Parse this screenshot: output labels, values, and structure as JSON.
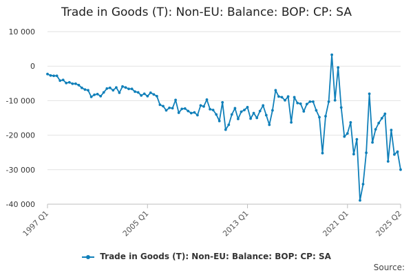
{
  "chart_data": {
    "type": "line",
    "title": "Trade in Goods (T): Non-EU: Balance: BOP: CP: SA",
    "source_label": "Source:",
    "yticks": [
      "10 000",
      "0",
      "-10 000",
      "-20 000",
      "-30 000",
      "-40 000"
    ],
    "ytick_values": [
      10000,
      0,
      -10000,
      -20000,
      -30000,
      -40000
    ],
    "ylim": [
      -40000,
      10000
    ],
    "xlim": [
      "1997 Q1",
      "2025 Q2"
    ],
    "xticks": [
      "1997 Q1",
      "2005 Q1",
      "2013 Q1",
      "2021 Q1",
      "2025 Q2"
    ],
    "grid": true,
    "legend_position": "bottom",
    "color": "#0f7fb9",
    "series": [
      {
        "name": "Trade in Goods (T): Non-EU: Balance: BOP: CP: SA",
        "x": [
          "1997 Q1",
          "1997 Q2",
          "1997 Q3",
          "1997 Q4",
          "1998 Q1",
          "1998 Q2",
          "1998 Q3",
          "1998 Q4",
          "1999 Q1",
          "1999 Q2",
          "1999 Q3",
          "1999 Q4",
          "2000 Q1",
          "2000 Q2",
          "2000 Q3",
          "2000 Q4",
          "2001 Q1",
          "2001 Q2",
          "2001 Q3",
          "2001 Q4",
          "2002 Q1",
          "2002 Q2",
          "2002 Q3",
          "2002 Q4",
          "2003 Q1",
          "2003 Q2",
          "2003 Q3",
          "2003 Q4",
          "2004 Q1",
          "2004 Q2",
          "2004 Q3",
          "2004 Q4",
          "2005 Q1",
          "2005 Q2",
          "2005 Q3",
          "2005 Q4",
          "2006 Q1",
          "2006 Q2",
          "2006 Q3",
          "2006 Q4",
          "2007 Q1",
          "2007 Q2",
          "2007 Q3",
          "2007 Q4",
          "2008 Q1",
          "2008 Q2",
          "2008 Q3",
          "2008 Q4",
          "2009 Q1",
          "2009 Q2",
          "2009 Q3",
          "2009 Q4",
          "2010 Q1",
          "2010 Q2",
          "2010 Q3",
          "2010 Q4",
          "2011 Q1",
          "2011 Q2",
          "2011 Q3",
          "2011 Q4",
          "2012 Q1",
          "2012 Q2",
          "2012 Q3",
          "2012 Q4",
          "2013 Q1",
          "2013 Q2",
          "2013 Q3",
          "2013 Q4",
          "2014 Q1",
          "2014 Q2",
          "2014 Q3",
          "2014 Q4",
          "2015 Q1",
          "2015 Q2",
          "2015 Q3",
          "2015 Q4",
          "2016 Q1",
          "2016 Q2",
          "2016 Q3",
          "2016 Q4",
          "2017 Q1",
          "2017 Q2",
          "2017 Q3",
          "2017 Q4",
          "2018 Q1",
          "2018 Q2",
          "2018 Q3",
          "2018 Q4",
          "2019 Q1",
          "2019 Q2",
          "2019 Q3",
          "2019 Q4",
          "2020 Q1",
          "2020 Q2",
          "2020 Q3",
          "2020 Q4",
          "2021 Q1",
          "2021 Q2",
          "2021 Q3",
          "2021 Q4",
          "2022 Q1",
          "2022 Q2",
          "2022 Q3",
          "2022 Q4",
          "2023 Q1",
          "2023 Q2",
          "2023 Q3",
          "2023 Q4",
          "2024 Q1",
          "2024 Q2",
          "2024 Q3",
          "2024 Q4",
          "2025 Q1",
          "2025 Q2"
        ],
        "values": [
          -2300,
          -2700,
          -2800,
          -2800,
          -4200,
          -4000,
          -4900,
          -4700,
          -5100,
          -5100,
          -5500,
          -6300,
          -6800,
          -7000,
          -8900,
          -8300,
          -8100,
          -8700,
          -7600,
          -6500,
          -6300,
          -7000,
          -6200,
          -7700,
          -5900,
          -6200,
          -6600,
          -6600,
          -7400,
          -7600,
          -8500,
          -8000,
          -8700,
          -7700,
          -8200,
          -8700,
          -11200,
          -11600,
          -12800,
          -12100,
          -12200,
          -9800,
          -13500,
          -12400,
          -12300,
          -13000,
          -13600,
          -13400,
          -14200,
          -11400,
          -11700,
          -9700,
          -12500,
          -12700,
          -14000,
          -15900,
          -10500,
          -18400,
          -17000,
          -14000,
          -12200,
          -15300,
          -13200,
          -12700,
          -11900,
          -15200,
          -13600,
          -15000,
          -13000,
          -11400,
          -14200,
          -17000,
          -12800,
          -7000,
          -8800,
          -9000,
          -9900,
          -8800,
          -16300,
          -9000,
          -10700,
          -10900,
          -13100,
          -11000,
          -10300,
          -10300,
          -12800,
          -14800,
          -25200,
          -14500,
          -10300,
          3300,
          -9900,
          -400,
          -12000,
          -20400,
          -19500,
          -16300,
          -25500,
          -21200,
          -38900,
          -34200,
          -25100,
          -8000,
          -22100,
          -18300,
          -16500,
          -15100,
          -13800,
          -27600,
          -18500,
          -25600,
          -24800,
          -30000
        ]
      }
    ]
  }
}
